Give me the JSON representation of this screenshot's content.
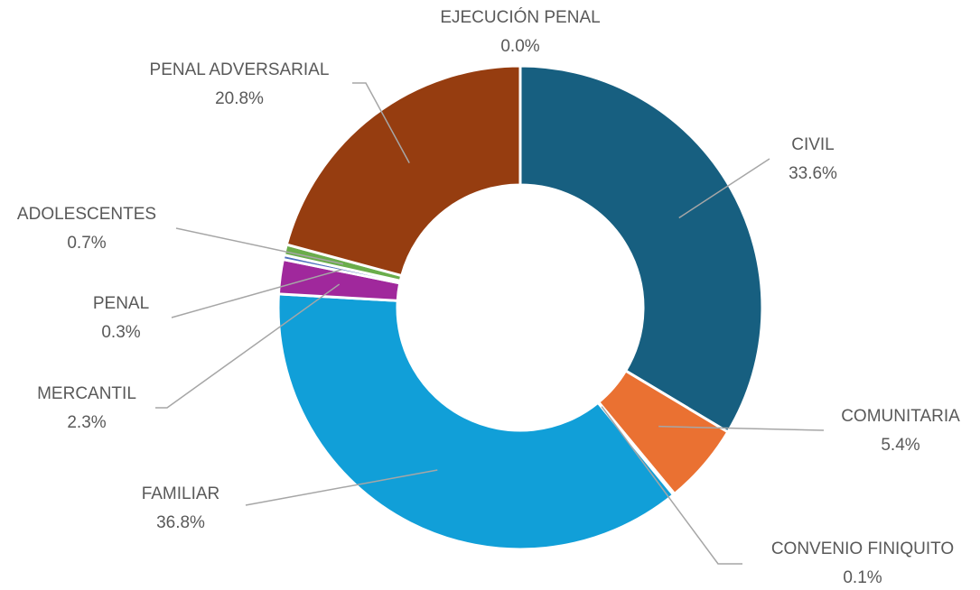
{
  "chart_data": {
    "type": "donut",
    "categories": [
      "CIVIL",
      "COMUNITARIA",
      "CONVENIO FINIQUITO",
      "FAMILIAR",
      "MERCANTIL",
      "PENAL",
      "ADOLESCENTES",
      "PENAL ADVERSARIAL",
      "EJECUCIÓN PENAL"
    ],
    "values": [
      33.6,
      5.4,
      0.1,
      36.8,
      2.3,
      0.3,
      0.7,
      20.8,
      0.0
    ],
    "value_labels": [
      "33.6%",
      "5.4%",
      "0.1%",
      "36.8%",
      "2.3%",
      "0.3%",
      "0.7%",
      "20.8%",
      "0.0%"
    ],
    "colors": [
      "#175f80",
      "#ea7132",
      "#8c8c8c",
      "#119fd8",
      "#a0289c",
      "#4f6fbf",
      "#6aad4b",
      "#963d10",
      "#c9a227"
    ]
  }
}
